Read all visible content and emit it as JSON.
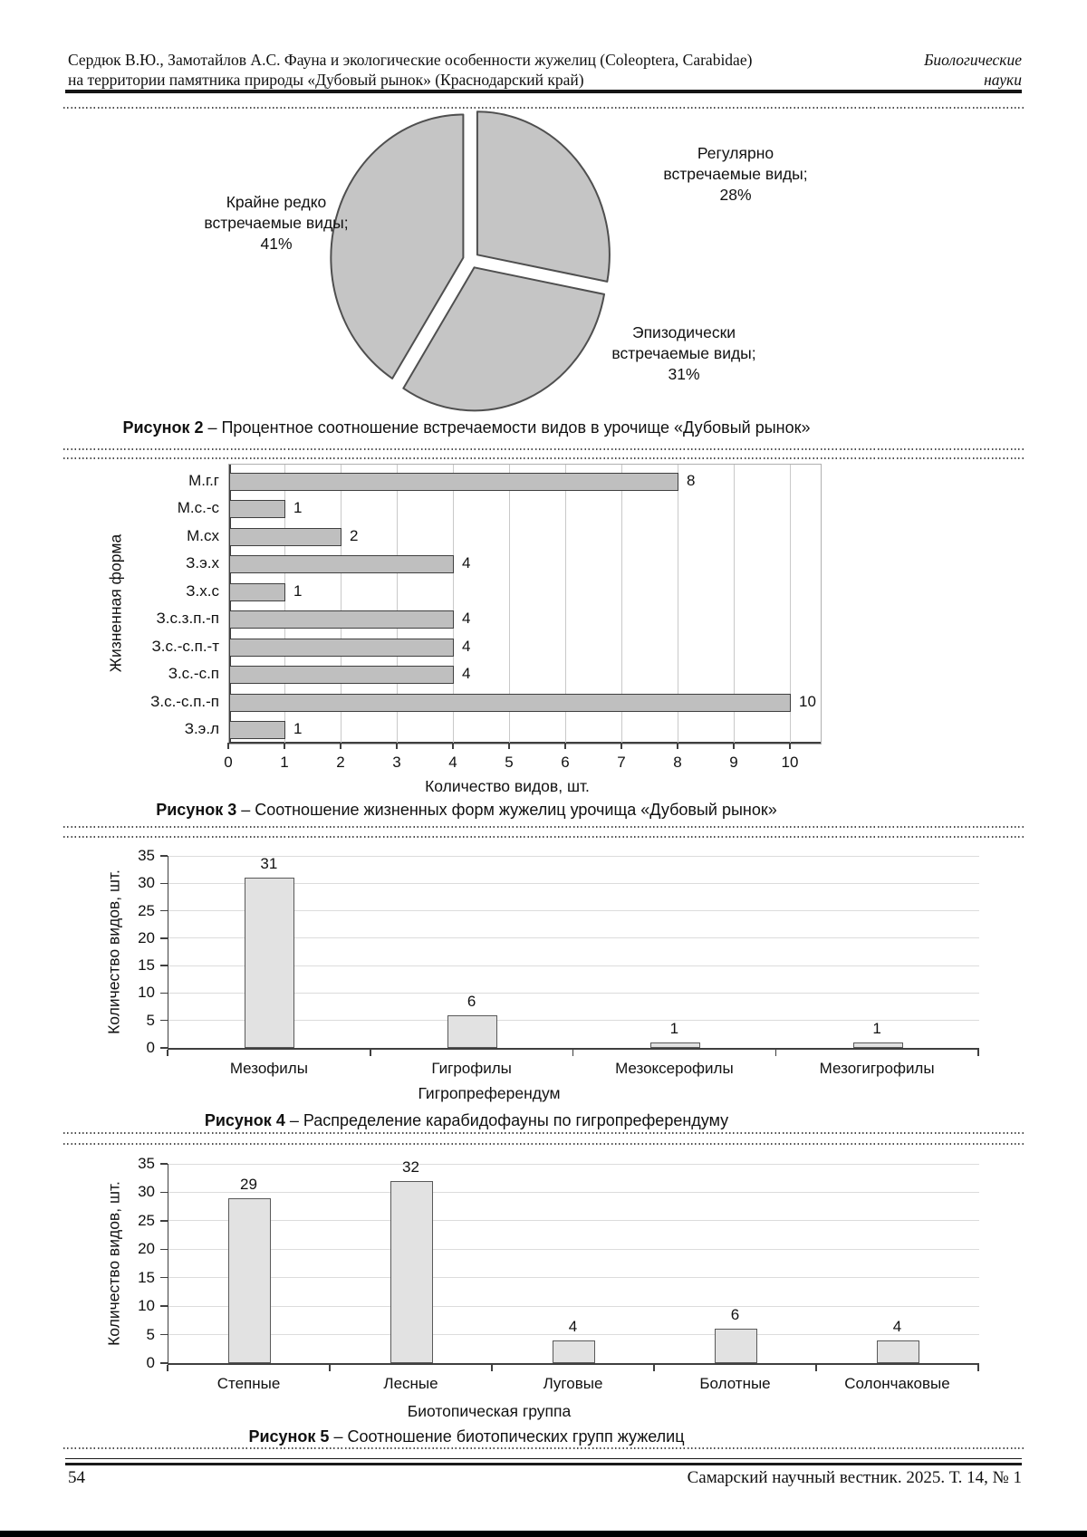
{
  "page": {
    "header": {
      "left_line1": "Сердюк В.Ю., Замотайлов А.С. Фауна и экологические особенности жужелиц (Coleoptera, Carabidae)",
      "left_line2": "на территории памятника природы «Дубовый рынок» (Краснодарский край)",
      "right_line1": "Биологические",
      "right_line2": "науки"
    },
    "footer": {
      "page_number": "54",
      "journal": "Самарский научный вестник. 2025. Т. 14, № 1"
    }
  },
  "figures": {
    "fig2": {
      "caption_label": "Рисунок 2",
      "caption_text": "– Процентное соотношение встречаемости видов в урочище «Дубовый рынок»"
    },
    "fig3": {
      "caption_label": "Рисунок 3",
      "caption_text": "– Соотношение жизненных форм жужелиц урочища «Дубовый рынок»"
    },
    "fig4": {
      "caption_label": "Рисунок 4",
      "caption_text": "– Распределение карабидофауны по гигропреферендуму"
    },
    "fig5": {
      "caption_label": "Рисунок 5",
      "caption_text": "– Соотношение биотопических групп жужелиц"
    }
  },
  "chart_data": [
    {
      "id": "occurrence-share",
      "type": "pie",
      "labels": [
        "Регулярно встречаемые виды",
        "Эпизодически встречаемые виды",
        "Крайне редко встречаемые виды"
      ],
      "values": [
        28,
        31,
        41
      ],
      "unit": "%",
      "labels_display": [
        {
          "lines": [
            "Регулярно",
            "встречаемые виды;",
            "28%"
          ]
        },
        {
          "lines": [
            "Эпизодически",
            "встречаемые виды;",
            "31%"
          ]
        },
        {
          "lines": [
            "Крайне редко",
            "встречаемые виды;",
            "41%"
          ]
        }
      ],
      "fill": "#c5c5c5",
      "stroke": "#4f4f4f",
      "legend": "none"
    },
    {
      "id": "life-forms",
      "type": "bar",
      "orientation": "horizontal",
      "categories": [
        "М.г.г",
        "М.с.-с",
        "М.сх",
        "З.э.х",
        "З.х.с",
        "З.с.з.п.-п",
        "З.с.-с.п.-т",
        "З.с.-с.п",
        "З.с.-с.п.-п",
        "З.э.л"
      ],
      "values": [
        8,
        1,
        2,
        4,
        1,
        4,
        4,
        4,
        10,
        1
      ],
      "xlabel": "Количество видов, шт.",
      "ylabel": "Жизненная форма",
      "xlim": [
        0,
        10
      ],
      "xticks": [
        0,
        1,
        2,
        3,
        4,
        5,
        6,
        7,
        8,
        9,
        10
      ],
      "grid": true,
      "fill": "#bfbfbf",
      "stroke": "#3f3f3f"
    },
    {
      "id": "hygropreference",
      "type": "bar",
      "orientation": "vertical",
      "categories": [
        "Мезофилы",
        "Гигрофилы",
        "Мезоксерофилы",
        "Мезогигрофилы"
      ],
      "values": [
        31,
        6,
        1,
        1
      ],
      "xlabel": "Гигропреферендум",
      "ylabel": "Количество видов, шт.",
      "ylim": [
        0,
        35
      ],
      "yticks": [
        0,
        5,
        10,
        15,
        20,
        25,
        30,
        35
      ],
      "grid": true,
      "fill": "#e2e2e2",
      "stroke": "#595959"
    },
    {
      "id": "biotopic-groups",
      "type": "bar",
      "orientation": "vertical",
      "categories": [
        "Степные",
        "Лесные",
        "Луговые",
        "Болотные",
        "Солончаковые"
      ],
      "values": [
        29,
        32,
        4,
        6,
        4
      ],
      "xlabel": "Биотопическая группа",
      "ylabel": "Количество видов, шт.",
      "ylim": [
        0,
        35
      ],
      "yticks": [
        0,
        5,
        10,
        15,
        20,
        25,
        30,
        35
      ],
      "grid": true,
      "fill": "#e2e2e2",
      "stroke": "#595959"
    }
  ]
}
